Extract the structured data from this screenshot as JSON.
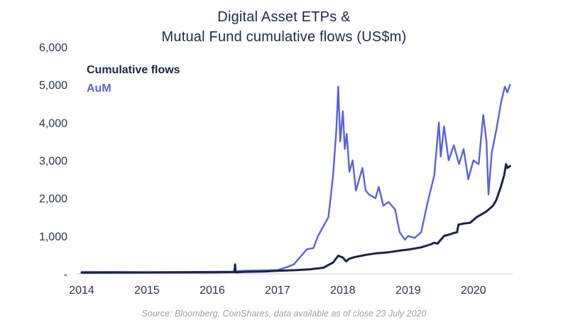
{
  "chart_data": {
    "type": "line",
    "title_lines": [
      "Digital Asset ETPs &",
      "Mutual Fund cumulative flows (US$m)"
    ],
    "source": "Source: Bloomberg, CoinShares, data available as of close 23 July 2020",
    "xlim": [
      2014.0,
      2020.6
    ],
    "ylim": [
      0,
      6000
    ],
    "x_ticks": [
      2014,
      2015,
      2016,
      2017,
      2018,
      2019,
      2020
    ],
    "x_tick_labels": [
      "2014",
      "2015",
      "2016",
      "2017",
      "2018",
      "2019",
      "2020"
    ],
    "y_ticks": [
      0,
      1000,
      2000,
      3000,
      4000,
      5000,
      6000
    ],
    "y_tick_labels": [
      "-",
      "1,000",
      "2,000",
      "3,000",
      "4,000",
      "5,000",
      "6,000"
    ],
    "grid": false,
    "legend_position": "top-left",
    "series": [
      {
        "name": "Cumulative flows",
        "color": "#1b2547",
        "points": [
          [
            2014.0,
            30
          ],
          [
            2014.5,
            32
          ],
          [
            2015.0,
            35
          ],
          [
            2015.5,
            38
          ],
          [
            2016.0,
            40
          ],
          [
            2016.3,
            45
          ],
          [
            2016.34,
            45
          ],
          [
            2016.35,
            250
          ],
          [
            2016.36,
            40
          ],
          [
            2016.5,
            50
          ],
          [
            2016.8,
            60
          ],
          [
            2017.0,
            80
          ],
          [
            2017.3,
            100
          ],
          [
            2017.5,
            120
          ],
          [
            2017.7,
            160
          ],
          [
            2017.85,
            300
          ],
          [
            2017.93,
            480
          ],
          [
            2018.0,
            430
          ],
          [
            2018.05,
            330
          ],
          [
            2018.1,
            400
          ],
          [
            2018.2,
            450
          ],
          [
            2018.35,
            500
          ],
          [
            2018.5,
            540
          ],
          [
            2018.7,
            570
          ],
          [
            2018.9,
            620
          ],
          [
            2019.0,
            640
          ],
          [
            2019.2,
            700
          ],
          [
            2019.35,
            780
          ],
          [
            2019.4,
            820
          ],
          [
            2019.45,
            800
          ],
          [
            2019.55,
            1000
          ],
          [
            2019.65,
            1050
          ],
          [
            2019.7,
            1080
          ],
          [
            2019.75,
            1100
          ],
          [
            2019.77,
            1300
          ],
          [
            2019.85,
            1330
          ],
          [
            2019.95,
            1350
          ],
          [
            2020.05,
            1500
          ],
          [
            2020.2,
            1650
          ],
          [
            2020.3,
            1800
          ],
          [
            2020.35,
            1950
          ],
          [
            2020.42,
            2300
          ],
          [
            2020.47,
            2600
          ],
          [
            2020.5,
            2900
          ],
          [
            2020.52,
            2800
          ],
          [
            2020.56,
            2850
          ]
        ]
      },
      {
        "name": "AuM",
        "color": "#5a62dc",
        "points": [
          [
            2014.0,
            50
          ],
          [
            2014.5,
            50
          ],
          [
            2015.0,
            45
          ],
          [
            2015.5,
            50
          ],
          [
            2016.0,
            55
          ],
          [
            2016.3,
            60
          ],
          [
            2016.5,
            80
          ],
          [
            2016.8,
            90
          ],
          [
            2017.0,
            100
          ],
          [
            2017.15,
            180
          ],
          [
            2017.25,
            250
          ],
          [
            2017.35,
            450
          ],
          [
            2017.45,
            650
          ],
          [
            2017.55,
            680
          ],
          [
            2017.62,
            1000
          ],
          [
            2017.7,
            1250
          ],
          [
            2017.78,
            1500
          ],
          [
            2017.85,
            2600
          ],
          [
            2017.9,
            3800
          ],
          [
            2017.93,
            4950
          ],
          [
            2017.96,
            3500
          ],
          [
            2018.0,
            4300
          ],
          [
            2018.03,
            3300
          ],
          [
            2018.06,
            3700
          ],
          [
            2018.1,
            2700
          ],
          [
            2018.15,
            3000
          ],
          [
            2018.2,
            2200
          ],
          [
            2018.3,
            2800
          ],
          [
            2018.35,
            2200
          ],
          [
            2018.4,
            2100
          ],
          [
            2018.5,
            2000
          ],
          [
            2018.55,
            2300
          ],
          [
            2018.62,
            1800
          ],
          [
            2018.7,
            1900
          ],
          [
            2018.8,
            1700
          ],
          [
            2018.87,
            1100
          ],
          [
            2018.95,
            900
          ],
          [
            2019.0,
            1000
          ],
          [
            2019.1,
            950
          ],
          [
            2019.2,
            1100
          ],
          [
            2019.3,
            1900
          ],
          [
            2019.4,
            2600
          ],
          [
            2019.47,
            4000
          ],
          [
            2019.5,
            3100
          ],
          [
            2019.55,
            3900
          ],
          [
            2019.62,
            3000
          ],
          [
            2019.7,
            3400
          ],
          [
            2019.78,
            2900
          ],
          [
            2019.85,
            3300
          ],
          [
            2019.92,
            2500
          ],
          [
            2020.0,
            3000
          ],
          [
            2020.08,
            2900
          ],
          [
            2020.15,
            4200
          ],
          [
            2020.2,
            3500
          ],
          [
            2020.23,
            2100
          ],
          [
            2020.28,
            3200
          ],
          [
            2020.35,
            3800
          ],
          [
            2020.42,
            4500
          ],
          [
            2020.48,
            4950
          ],
          [
            2020.52,
            4800
          ],
          [
            2020.56,
            5000
          ]
        ]
      }
    ]
  }
}
